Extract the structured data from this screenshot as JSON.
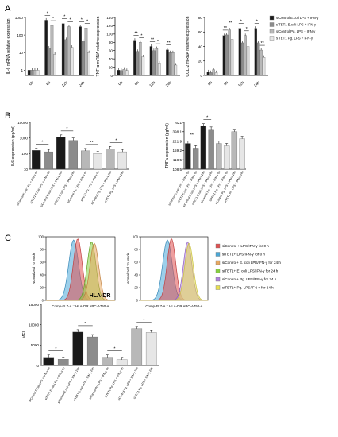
{
  "panel_labels": {
    "a": "A",
    "b": "B",
    "c": "C"
  },
  "colors": {
    "sictrl_ecoli": "#1a1a1a",
    "sitet1_ecoli": "#8c8c8c",
    "sictrl_pg": "#b8b8b8",
    "sitet1_pg": "#e6e6e6",
    "flow_ctrl0": "#e05050",
    "flow_tet0": "#4aa8d8",
    "flow_ctrl_ecoli": "#e8a860",
    "flow_tet_ecoli": "#86d040",
    "flow_ctrl_pg": "#b080e0",
    "flow_tet_pg": "#e8e050"
  },
  "legend_a": [
    "siControl E.coli LPS + IFN-γ",
    "siTET1 E.coli LPS + IFN-γ",
    "siControl Pg. LPS + IFN-γ",
    "siTET1 Pg. LPS + IFN-γ"
  ],
  "legend_c": [
    "siControl + LPS/IFN-γ for 0 h",
    "siTET1+ LPS/IFN-γ for 0 h",
    "siControl+ E. coli LPS/IFN-γ for 24 h",
    "siTET1+ E. coli LPS/IFN-γ for 24 h",
    "siControl+ Pg. LPS/IFN-γ for 24 h",
    "siTET1+ Pg. LPS/IFN-γ for 24 h"
  ],
  "flow": {
    "ylabel": "Normalized To Mode",
    "xlabel": "Comp-FL7-A :: HLA-DR APC-A750-A",
    "yticks": [
      "0",
      "20",
      "40",
      "60",
      "80",
      "100"
    ]
  },
  "chart_data": [
    {
      "type": "bar",
      "panel": "A",
      "ylabel": "IL-6 mRNA relative expression",
      "scale": "log",
      "yticks": [
        "1",
        "10",
        "100",
        "1000"
      ],
      "ylim": [
        0.5,
        1000
      ],
      "categories": [
        "0h",
        "6h",
        "12h",
        "24h"
      ],
      "series": [
        {
          "values": [
            1,
            700,
            450,
            300
          ]
        },
        {
          "values": [
            1,
            18,
            55,
            45
          ]
        },
        {
          "values": [
            1,
            350,
            300,
            250
          ]
        },
        {
          "values": [
            1,
            8,
            20,
            10
          ]
        }
      ],
      "annotations": [
        "*",
        "*",
        "*",
        "*",
        "*",
        "*"
      ]
    },
    {
      "type": "bar",
      "panel": "A",
      "ylabel": "TNF-α mRNA relative expression",
      "yticks": [
        "0",
        "20",
        "40",
        "60",
        "80",
        "100",
        "120",
        "140"
      ],
      "ylim": [
        0,
        140
      ],
      "categories": [
        "0h",
        "6h",
        "12h",
        "24h"
      ],
      "series": [
        {
          "values": [
            13,
            85,
            70,
            62
          ]
        },
        {
          "values": [
            12,
            58,
            60,
            55
          ]
        },
        {
          "values": [
            15,
            80,
            65,
            55
          ]
        },
        {
          "values": [
            12,
            45,
            30,
            25
          ]
        }
      ],
      "annotations": [
        "**",
        "*",
        "**",
        "*",
        "**"
      ]
    },
    {
      "type": "bar",
      "panel": "A",
      "ylabel": "CCL-2 mRNA relative expression",
      "yticks": [
        "0",
        "20",
        "40",
        "60",
        "80"
      ],
      "ylim": [
        0,
        80
      ],
      "categories": [
        "0h",
        "6h",
        "12h",
        "24h"
      ],
      "series": [
        {
          "values": [
            5,
            55,
            65,
            65
          ]
        },
        {
          "values": [
            4,
            56,
            45,
            45
          ]
        },
        {
          "values": [
            8,
            63,
            55,
            35
          ]
        },
        {
          "values": [
            4,
            50,
            40,
            25
          ]
        }
      ],
      "annotations": [
        "**",
        "**",
        "*",
        "*",
        "*",
        "**"
      ]
    },
    {
      "type": "bar",
      "panel": "B",
      "ylabel": "IL6 expression (pg/ml)",
      "scale": "log",
      "yticks": [
        "10",
        "100",
        "1000",
        "10000"
      ],
      "ylim": [
        10,
        10000
      ],
      "categories": [
        "siControl E.coli LPS + IFN-γ 0h",
        "siTET1 E.coli LPS + IFN-γ 0h",
        "siControl E.coli LPS + IFN-γ 24h",
        "siTET1 E.coli LPS + IFN-γ 24h",
        "siControl Pg. LPS + IFN-γ 0h",
        "siTET1 Pg. LPS + IFN-γ 0h",
        "siControl Pg. LPS + IFN-γ 24h",
        "siTET1 Pg. LPS + IFN-γ 24h"
      ],
      "values": [
        160,
        130,
        1100,
        700,
        150,
        100,
        200,
        130
      ],
      "annotations": [
        "*",
        "*",
        "**",
        "*"
      ]
    },
    {
      "type": "bar",
      "panel": "B",
      "ylabel": "TNFa expression (pg/ml)",
      "yticks": [
        "108.5",
        "118.5",
        "159.2",
        "221.9",
        "398.1",
        "621"
      ],
      "categories": [
        "siControl E.coli LPS + IFN-γ 0h",
        "siTET1 E.coli LPS + IFN-γ 0h",
        "siControl E.coli LPS + IFN-γ 24h",
        "siTET1 E.coli LPS + IFN-γ 24h",
        "siControl Pg. LPS + IFN-γ 0h",
        "siTET1 Pg. LPS + IFN-γ 0h",
        "siControl Pg. LPS + IFN-γ 24h",
        "siTET1 Pg. LPS + IFN-γ 24h"
      ],
      "values": [
        0.55,
        0.45,
        0.92,
        0.85,
        0.55,
        0.5,
        0.8,
        0.65
      ],
      "annotations": [
        "**",
        "*"
      ]
    },
    {
      "type": "bar",
      "panel": "C",
      "title": "HLA-DR",
      "ylabel": "MFI",
      "yticks": [
        "0",
        "5000",
        "10000",
        "15000"
      ],
      "ylim": [
        0,
        15000
      ],
      "categories": [
        "siControl E.coli LPS + IFN-γ 0h",
        "siTET1 E.coli LPS + IFN-γ 0h",
        "siControl E.coli LPS + IFN-γ 24h",
        "siTET1 E.coli LPS + IFN-γ 24h",
        "siControl Pg. LPS + IFN-γ 0h",
        "siTET1 Pg. LPS + IFN-γ 0h",
        "siControl Pg. LPS + IFN-γ 24h",
        "siTET1 Pg. LPS + IFN-γ 24h"
      ],
      "values": [
        2000,
        1500,
        8200,
        7000,
        2000,
        1400,
        9000,
        8100
      ],
      "annotations": [
        "*",
        "*",
        "*",
        "*"
      ]
    }
  ]
}
